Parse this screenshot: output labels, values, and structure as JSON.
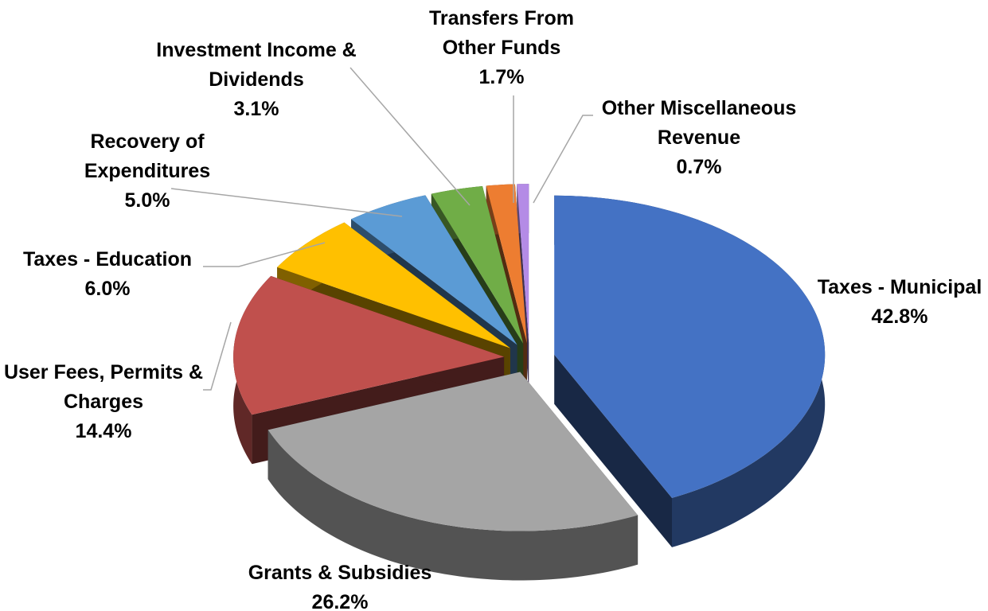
{
  "chart_data": {
    "type": "pie",
    "categories": [
      "Taxes - Municipal",
      "Grants & Subsidies",
      "User Fees, Permits & Charges",
      "Taxes - Education",
      "Recovery of Expenditures",
      "Investment Income & Dividends",
      "Transfers From Other Funds",
      "Other Miscellaneous Revenue"
    ],
    "values": [
      42.8,
      26.2,
      14.4,
      6.0,
      5.0,
      3.1,
      1.7,
      0.7
    ],
    "value_labels": [
      "42.8%",
      "26.2%",
      "14.4%",
      "6.0%",
      "5.0%",
      "3.1%",
      "1.7%",
      "0.7%"
    ],
    "colors": [
      "#4472c4",
      "#a5a5a5",
      "#c0504d",
      "#ffc000",
      "#5b9bd5",
      "#70ad47",
      "#ed7d31",
      "#b48be6"
    ]
  }
}
